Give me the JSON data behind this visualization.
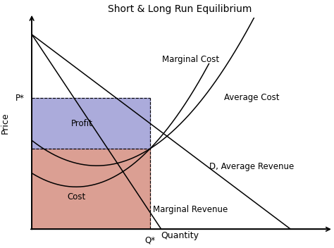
{
  "title": "Short & Long Run Equilibrium",
  "xlabel": "Quantity",
  "ylabel": "Price",
  "profit_color": "#8888cc",
  "cost_color": "#cc7766",
  "P_star": 0.62,
  "Q_star": 0.4,
  "AC_at_Qstar": 0.38,
  "xlim": [
    0,
    1.0
  ],
  "ylim": [
    0,
    1.0
  ],
  "title_fontsize": 10,
  "label_fontsize": 8.5,
  "axis_label_fontsize": 9
}
